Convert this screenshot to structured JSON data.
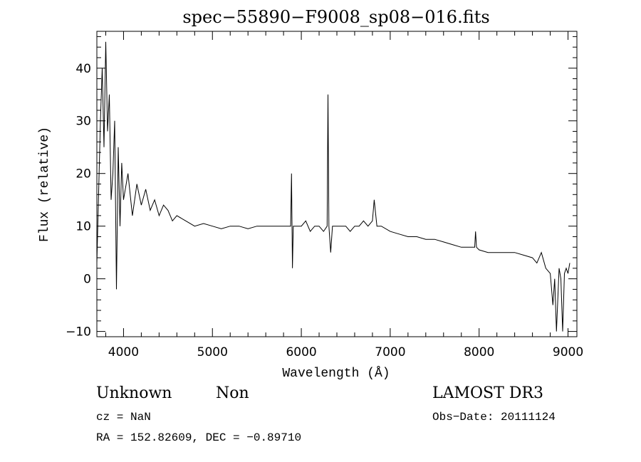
{
  "chart_data": {
    "type": "line",
    "title": "spec−55890−F9008_sp08−016.fits",
    "xlabel": "Wavelength (Å)",
    "ylabel": "Flux (relative)",
    "xlim": [
      3700,
      9100
    ],
    "ylim": [
      -11,
      47
    ],
    "xticks": [
      4000,
      5000,
      6000,
      7000,
      8000,
      9000
    ],
    "xtick_labels": [
      "4000",
      "5000",
      "6000",
      "7000",
      "8000",
      "9000"
    ],
    "yticks": [
      -10,
      0,
      10,
      20,
      30,
      40
    ],
    "ytick_labels": [
      "−10",
      "0",
      "10",
      "20",
      "30",
      "40"
    ],
    "x_minor_step": 200,
    "y_minor_step": 2,
    "grid": false,
    "series": [
      {
        "name": "spectrum",
        "x": [
          3700,
          3740,
          3760,
          3780,
          3800,
          3820,
          3840,
          3860,
          3880,
          3900,
          3920,
          3940,
          3960,
          3980,
          4000,
          4050,
          4100,
          4150,
          4200,
          4250,
          4300,
          4350,
          4400,
          4450,
          4500,
          4550,
          4600,
          4700,
          4800,
          4900,
          5000,
          5100,
          5200,
          5300,
          5400,
          5500,
          5600,
          5700,
          5800,
          5880,
          5890,
          5900,
          5910,
          6000,
          6050,
          6100,
          6150,
          6200,
          6250,
          6290,
          6300,
          6310,
          6330,
          6350,
          6400,
          6500,
          6550,
          6600,
          6650,
          6700,
          6750,
          6800,
          6820,
          6850,
          6900,
          7000,
          7100,
          7200,
          7300,
          7400,
          7500,
          7600,
          7700,
          7800,
          7900,
          7950,
          7960,
          7970,
          8000,
          8100,
          8200,
          8300,
          8400,
          8500,
          8600,
          8650,
          8700,
          8750,
          8800,
          8830,
          8850,
          8870,
          8900,
          8920,
          8940,
          8960,
          8980,
          9000,
          9020
        ],
        "y": [
          3,
          30,
          40,
          25,
          45,
          28,
          35,
          15,
          20,
          30,
          -2,
          25,
          10,
          22,
          15,
          20,
          12,
          18,
          14,
          17,
          13,
          15,
          12,
          14,
          13,
          11,
          12,
          11,
          10,
          10.5,
          10,
          9.5,
          10,
          10,
          9.5,
          10,
          10,
          10,
          10,
          10,
          20,
          2,
          10,
          10,
          11,
          9,
          10,
          10,
          9,
          10,
          35,
          10,
          5,
          10,
          10,
          10,
          9,
          10,
          10,
          11,
          10,
          11,
          15,
          10,
          10,
          9,
          8.5,
          8,
          8,
          7.5,
          7.5,
          7,
          6.5,
          6,
          6,
          6,
          9,
          6,
          5.5,
          5,
          5,
          5,
          5,
          4.5,
          4,
          3,
          5,
          2,
          1,
          -5,
          0,
          -10,
          2,
          0,
          -10,
          1,
          2,
          1,
          3
        ]
      }
    ]
  },
  "annotations": {
    "class": "Unknown",
    "subclass": "Non",
    "survey": "LAMOST DR3",
    "cz": "cz = NaN",
    "obs_date": "Obs−Date: 20111124",
    "coords": "RA = 152.82609, DEC =  −0.89710"
  }
}
